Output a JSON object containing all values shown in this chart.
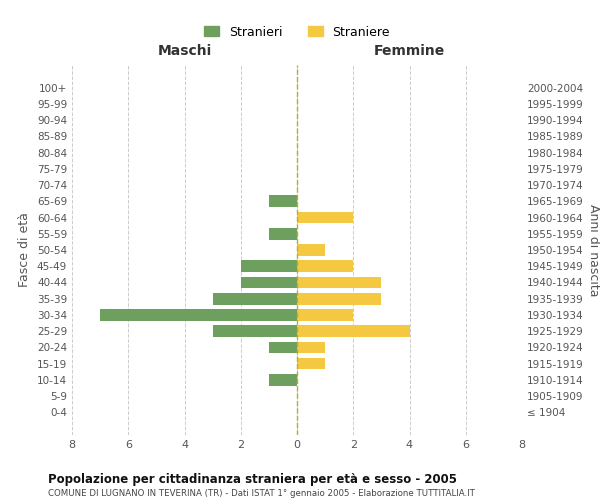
{
  "age_groups": [
    "100+",
    "95-99",
    "90-94",
    "85-89",
    "80-84",
    "75-79",
    "70-74",
    "65-69",
    "60-64",
    "55-59",
    "50-54",
    "45-49",
    "40-44",
    "35-39",
    "30-34",
    "25-29",
    "20-24",
    "15-19",
    "10-14",
    "5-9",
    "0-4"
  ],
  "birth_years": [
    "≤ 1904",
    "1905-1909",
    "1910-1914",
    "1915-1919",
    "1920-1924",
    "1925-1929",
    "1930-1934",
    "1935-1939",
    "1940-1944",
    "1945-1949",
    "1950-1954",
    "1955-1959",
    "1960-1964",
    "1965-1969",
    "1970-1974",
    "1975-1979",
    "1980-1984",
    "1985-1989",
    "1990-1994",
    "1995-1999",
    "2000-2004"
  ],
  "maschi": [
    0,
    0,
    0,
    0,
    0,
    0,
    0,
    1,
    0,
    1,
    0,
    2,
    2,
    3,
    7,
    3,
    1,
    0,
    1,
    0,
    0
  ],
  "femmine": [
    0,
    0,
    0,
    0,
    0,
    0,
    0,
    0,
    2,
    0,
    1,
    2,
    3,
    3,
    2,
    4,
    1,
    1,
    0,
    0,
    0
  ],
  "male_color": "#6d9f5e",
  "female_color": "#f5c842",
  "background_color": "#ffffff",
  "grid_color": "#cccccc",
  "title": "Popolazione per cittadinanza straniera per età e sesso - 2005",
  "subtitle": "COMUNE DI LUGNANO IN TEVERINA (TR) - Dati ISTAT 1° gennaio 2005 - Elaborazione TUTTITALIA.IT",
  "xlabel_left": "Maschi",
  "xlabel_right": "Femmine",
  "ylabel_left": "Fasce di età",
  "ylabel_right": "Anni di nascita",
  "legend_male": "Stranieri",
  "legend_female": "Straniere",
  "xlim": 8,
  "center_line_color": "#b8b020"
}
